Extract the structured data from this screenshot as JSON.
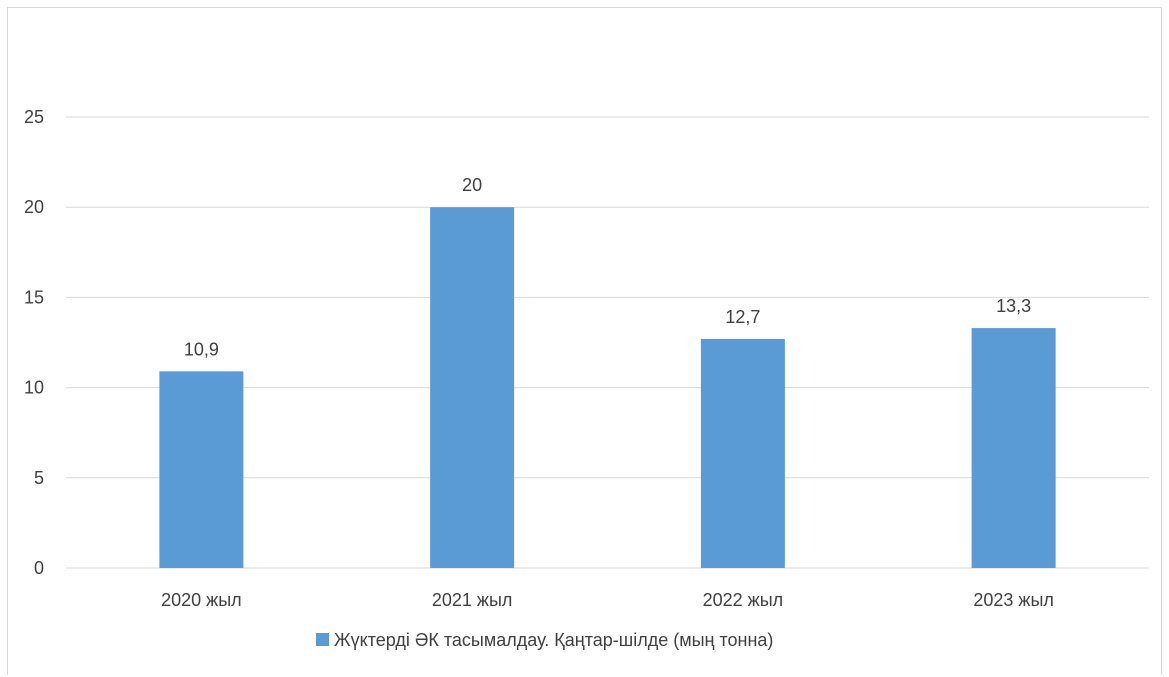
{
  "chart_data": {
    "type": "bar",
    "categories": [
      "2020 жыл",
      "2021 жыл",
      "2022 жыл",
      "2023 жыл"
    ],
    "series": [
      {
        "name": "Жүктерді ӘК тасымалдау. Қаңтар-шілде (мың тонна)",
        "values": [
          10.9,
          20,
          12.7,
          13.3
        ],
        "labels": [
          "10,9",
          "20",
          "12,7",
          "13,3"
        ],
        "color": "#5b9bd5"
      }
    ],
    "yticks": [
      "0",
      "5",
      "10",
      "15",
      "20",
      "25"
    ],
    "ylim": [
      0,
      25
    ],
    "grid": true,
    "gridColor": "#d9d9d9",
    "legend": "bottom"
  }
}
